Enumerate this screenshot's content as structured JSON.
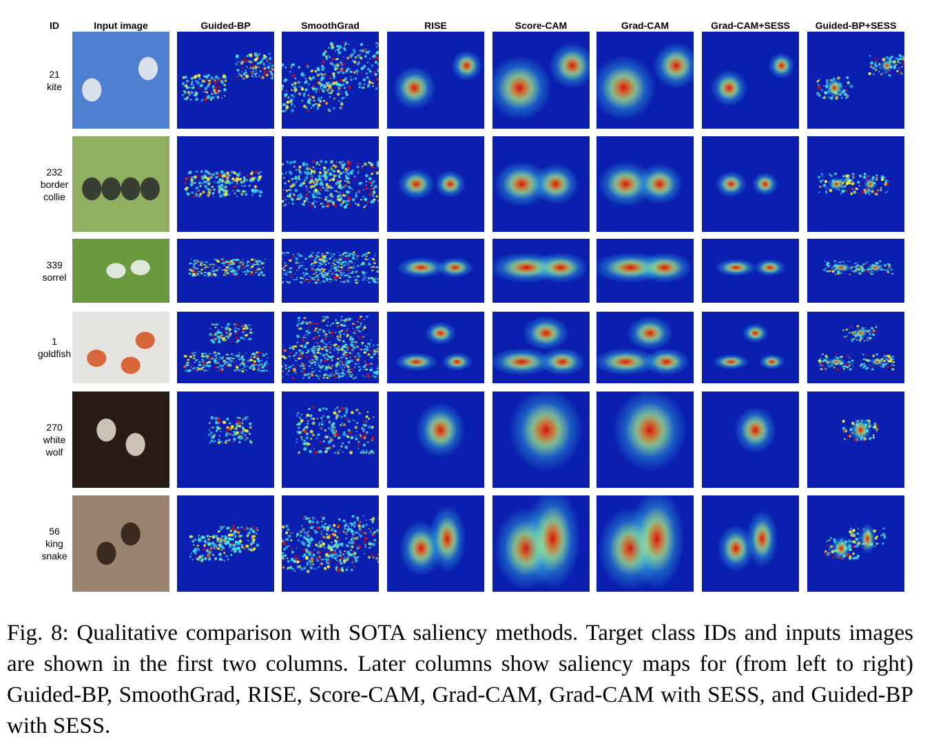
{
  "columns": [
    "ID",
    "Input image",
    "Guided-BP",
    "SmoothGrad",
    "RISE",
    "Score-CAM",
    "Grad-CAM",
    "Grad-CAM+SESS",
    "Guided-BP+SESS"
  ],
  "rows": [
    {
      "id": "21",
      "label_lines": [
        "kite"
      ]
    },
    {
      "id": "232",
      "label_lines": [
        "border",
        "collie"
      ]
    },
    {
      "id": "339",
      "label_lines": [
        "sorrel"
      ]
    },
    {
      "id": "1",
      "label_lines": [
        "goldfish"
      ]
    },
    {
      "id": "270",
      "label_lines": [
        "white",
        "wolf"
      ]
    },
    {
      "id": "56",
      "label_lines": [
        "king",
        "snake"
      ]
    }
  ],
  "caption": "Fig. 8: Qualitative comparison with SOTA saliency methods. Target class IDs and inputs images are shown in the first two columns. Later columns show saliency maps for (from left to right) Guided-BP, SmoothGrad, RISE, Score-CAM, Grad-CAM, Grad-CAM with SESS, and Guided-BP with SESS.",
  "colors": {
    "cold": "#0a1eb0",
    "cyan": "#3fe0f0",
    "yellow": "#f5f03a",
    "hot": "#d01010"
  }
}
